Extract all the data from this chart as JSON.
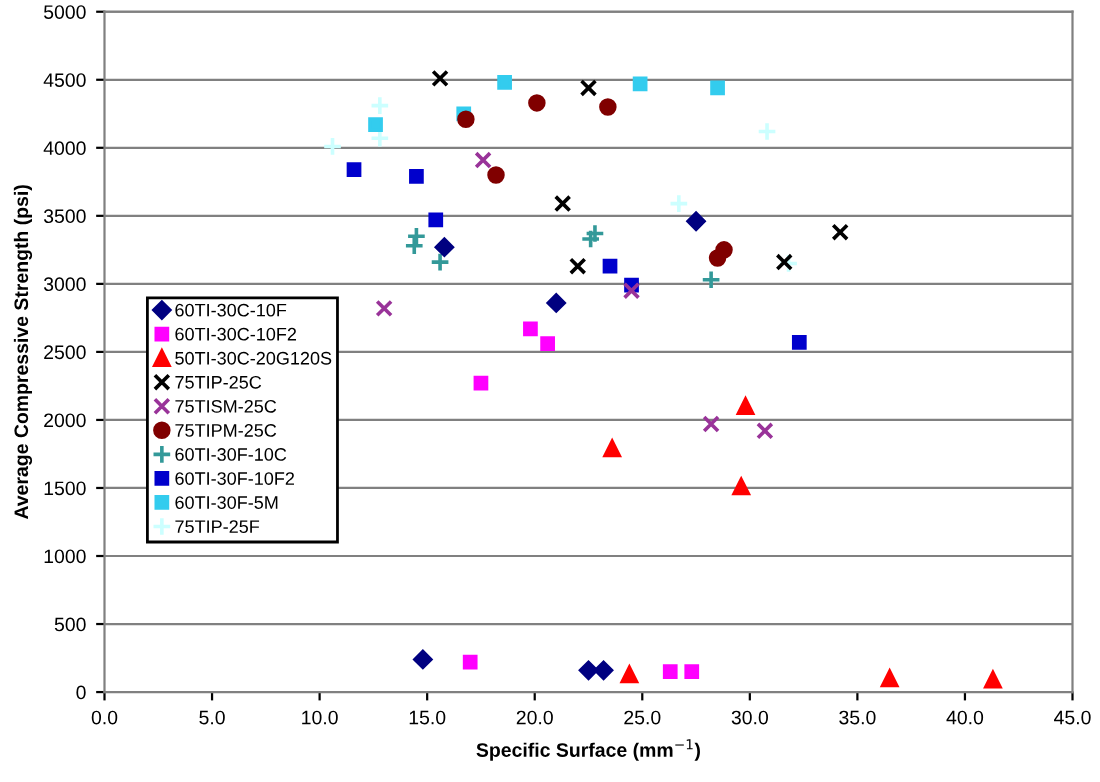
{
  "chart_data": {
    "type": "scatter",
    "xlabel": "Specific Surface (mm$^{−1}$)",
    "ylabel": "Average Compressive Strength (psi)",
    "xlim": [
      0,
      45
    ],
    "ylim": [
      0,
      5000
    ],
    "xticks": [
      {
        "value": 0,
        "label": "0.0"
      },
      {
        "value": 5,
        "label": "5.0"
      },
      {
        "value": 10,
        "label": "10.0"
      },
      {
        "value": 15,
        "label": "15.0"
      },
      {
        "value": 20,
        "label": "20.0"
      },
      {
        "value": 25,
        "label": "25.0"
      },
      {
        "value": 30,
        "label": "30.0"
      },
      {
        "value": 35,
        "label": "35.0"
      },
      {
        "value": 40,
        "label": "40.0"
      },
      {
        "value": 45,
        "label": "45.0"
      }
    ],
    "yticks": [
      0,
      500,
      1000,
      1500,
      2000,
      2500,
      3000,
      3500,
      4000,
      4500,
      5000
    ],
    "grid": "y",
    "legend": "left",
    "series": [
      {
        "name": "60TI-30C-10F",
        "color": "#000080",
        "marker": "diamond",
        "x": [
          14.8,
          22.5,
          23.2,
          15.8,
          21.0,
          27.5
        ],
        "values": [
          240,
          160,
          160,
          3270,
          2860,
          3460
        ]
      },
      {
        "name": "60TI-30C-10F2",
        "color": "#ff00ff",
        "marker": "square",
        "x": [
          17.0,
          26.3,
          27.3,
          19.8,
          20.6,
          17.5
        ],
        "values": [
          220,
          150,
          150,
          2670,
          2560,
          2270
        ]
      },
      {
        "name": "50TI-30C-20G120S",
        "color": "#ff0000",
        "marker": "triangle",
        "x": [
          24.4,
          36.5,
          41.3,
          23.6,
          29.6,
          29.8
        ],
        "values": [
          130,
          100,
          90,
          1790,
          1510,
          2100
        ]
      },
      {
        "name": "75TIP-25C",
        "color": "#000000",
        "marker": "cross",
        "x": [
          15.6,
          22.5,
          21.3,
          22.0,
          31.6,
          34.2
        ],
        "values": [
          4510,
          4440,
          3590,
          3130,
          3160,
          3380
        ]
      },
      {
        "name": "75TISM-25C",
        "color": "#993399",
        "marker": "cross",
        "x": [
          13.0,
          17.6,
          24.5,
          28.2,
          30.7
        ],
        "values": [
          2820,
          3910,
          2950,
          1970,
          1920
        ]
      },
      {
        "name": "75TIPM-25C",
        "color": "#800000",
        "marker": "circle",
        "x": [
          16.8,
          18.2,
          20.1,
          23.4,
          28.5,
          28.8
        ],
        "values": [
          4210,
          3800,
          4330,
          4300,
          3190,
          3250
        ]
      },
      {
        "name": "60TI-30F-10C",
        "color": "#339999",
        "marker": "plus",
        "x": [
          14.4,
          14.5,
          15.6,
          22.6,
          22.8,
          28.2
        ],
        "values": [
          3280,
          3350,
          3160,
          3330,
          3370,
          3030
        ]
      },
      {
        "name": "60TI-30F-10F2",
        "color": "#0000cc",
        "marker": "square",
        "x": [
          11.6,
          14.5,
          15.4,
          23.5,
          24.5,
          32.3
        ],
        "values": [
          3840,
          3790,
          3470,
          3130,
          2990,
          2570
        ]
      },
      {
        "name": "60TI-30F-5M",
        "color": "#33ccee",
        "marker": "square",
        "x": [
          18.6,
          12.6,
          16.7,
          24.9,
          28.5
        ],
        "values": [
          4480,
          4170,
          4250,
          4470,
          4440
        ]
      },
      {
        "name": "75TIP-25F",
        "color": "#ccffff",
        "marker": "plus",
        "x": [
          12.8,
          12.8,
          10.6,
          30.8,
          26.7,
          31.8
        ],
        "values": [
          4310,
          4070,
          4010,
          4120,
          3590,
          3150
        ]
      }
    ]
  }
}
